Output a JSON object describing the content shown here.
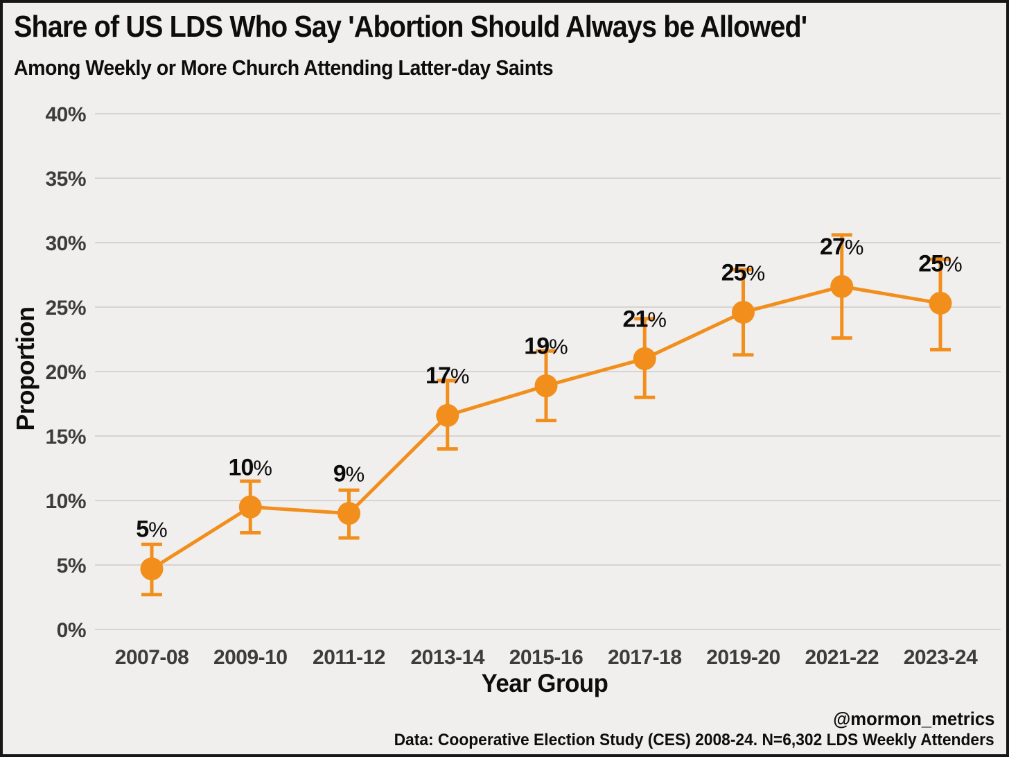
{
  "chart_data": {
    "type": "line",
    "title": "Share of US LDS Who Say 'Abortion Should Always be Allowed'",
    "subtitle": "Among Weekly or More Church Attending Latter-day Saints",
    "xlabel": "Year Group",
    "ylabel": "Proportion",
    "categories": [
      "2007-08",
      "2009-10",
      "2011-12",
      "2013-14",
      "2015-16",
      "2017-18",
      "2019-20",
      "2021-22",
      "2023-24"
    ],
    "values": [
      4.7,
      9.5,
      9.0,
      16.6,
      18.9,
      21.0,
      24.6,
      26.6,
      25.3
    ],
    "point_labels": [
      "5%",
      "10%",
      "9%",
      "17%",
      "19%",
      "21%",
      "25%",
      "27%",
      "25%"
    ],
    "error_low": [
      2.7,
      7.5,
      7.1,
      14.0,
      16.2,
      18.0,
      21.3,
      22.6,
      21.7
    ],
    "error_high": [
      6.6,
      11.5,
      10.8,
      19.3,
      21.6,
      24.1,
      27.9,
      30.6,
      28.7
    ],
    "ylim": [
      0,
      40
    ],
    "ytick_labels": [
      "0%",
      "5%",
      "10%",
      "15%",
      "20%",
      "25%",
      "30%",
      "35%",
      "40%"
    ],
    "grid": "horizontal",
    "legend": "none",
    "colors": {
      "series": "#F28E1C",
      "label_text": "#0B0B0B",
      "tick_text": "#3C3C3C",
      "grid": "#D6D4D1",
      "background": "#F0EFED",
      "frame": "#171717"
    }
  },
  "footer": {
    "attribution": "@mormon_metrics",
    "source": "Data: Cooperative Election Study (CES) 2008-24. N=6,302 LDS Weekly Attenders"
  }
}
